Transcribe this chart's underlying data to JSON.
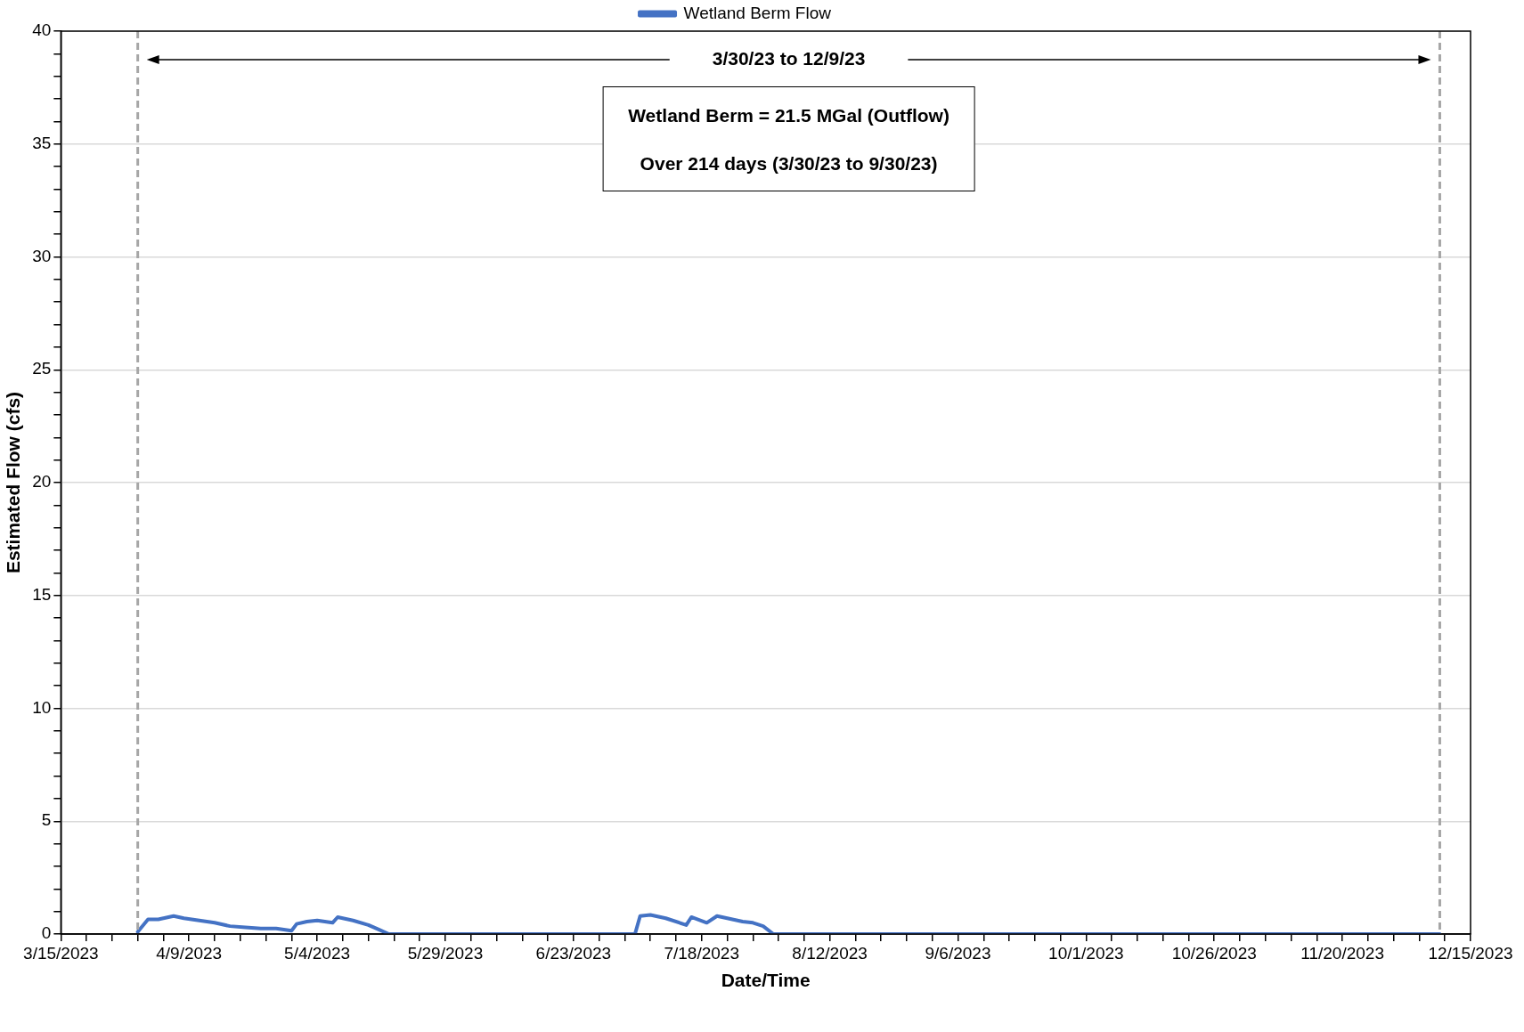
{
  "chart_data": {
    "type": "line",
    "xlabel": "Date/Time",
    "ylabel": "Estimated Flow (cfs)",
    "x": [
      "2023-03-30",
      "2023-04-01",
      "2023-04-03",
      "2023-04-06",
      "2023-04-08",
      "2023-04-11",
      "2023-04-14",
      "2023-04-17",
      "2023-04-20",
      "2023-04-23",
      "2023-04-26",
      "2023-04-29",
      "2023-04-30",
      "2023-05-02",
      "2023-05-04",
      "2023-05-07",
      "2023-05-08",
      "2023-05-11",
      "2023-05-14",
      "2023-05-16",
      "2023-05-18",
      "2023-07-05",
      "2023-07-06",
      "2023-07-08",
      "2023-07-11",
      "2023-07-15",
      "2023-07-16",
      "2023-07-19",
      "2023-07-21",
      "2023-07-26",
      "2023-07-28",
      "2023-07-30",
      "2023-08-01",
      "2023-12-09"
    ],
    "series": [
      {
        "name": "Wetland Berm Flow",
        "color": "#4472c4",
        "values": [
          0.1,
          0.65,
          0.65,
          0.8,
          0.7,
          0.6,
          0.5,
          0.35,
          0.3,
          0.25,
          0.25,
          0.15,
          0.45,
          0.55,
          0.6,
          0.5,
          0.75,
          0.6,
          0.4,
          0.2,
          0,
          0,
          0.8,
          0.85,
          0.7,
          0.4,
          0.75,
          0.5,
          0.8,
          0.55,
          0.5,
          0.35,
          0,
          0
        ]
      }
    ],
    "xlim": [
      "2023-03-15",
      "2023-12-15"
    ],
    "xticks": [
      {
        "value": "2023-03-15",
        "label": "3/15/2023"
      },
      {
        "value": "2023-03-20",
        "label": null
      },
      {
        "value": "2023-03-25",
        "label": null
      },
      {
        "value": "2023-03-30",
        "label": null
      },
      {
        "value": "2023-04-04",
        "label": null
      },
      {
        "value": "2023-04-09",
        "label": "4/9/2023"
      },
      {
        "value": "2023-04-14",
        "label": null
      },
      {
        "value": "2023-04-19",
        "label": null
      },
      {
        "value": "2023-04-24",
        "label": null
      },
      {
        "value": "2023-04-29",
        "label": null
      },
      {
        "value": "2023-05-04",
        "label": "5/4/2023"
      },
      {
        "value": "2023-05-09",
        "label": null
      },
      {
        "value": "2023-05-14",
        "label": null
      },
      {
        "value": "2023-05-19",
        "label": null
      },
      {
        "value": "2023-05-24",
        "label": null
      },
      {
        "value": "2023-05-29",
        "label": "5/29/2023"
      },
      {
        "value": "2023-06-03",
        "label": null
      },
      {
        "value": "2023-06-08",
        "label": null
      },
      {
        "value": "2023-06-13",
        "label": null
      },
      {
        "value": "2023-06-18",
        "label": null
      },
      {
        "value": "2023-06-23",
        "label": "6/23/2023"
      },
      {
        "value": "2023-06-28",
        "label": null
      },
      {
        "value": "2023-07-03",
        "label": null
      },
      {
        "value": "2023-07-08",
        "label": null
      },
      {
        "value": "2023-07-13",
        "label": null
      },
      {
        "value": "2023-07-18",
        "label": "7/18/2023"
      },
      {
        "value": "2023-07-23",
        "label": null
      },
      {
        "value": "2023-07-28",
        "label": null
      },
      {
        "value": "2023-08-02",
        "label": null
      },
      {
        "value": "2023-08-07",
        "label": null
      },
      {
        "value": "2023-08-12",
        "label": "8/12/2023"
      },
      {
        "value": "2023-08-17",
        "label": null
      },
      {
        "value": "2023-08-22",
        "label": null
      },
      {
        "value": "2023-08-27",
        "label": null
      },
      {
        "value": "2023-09-01",
        "label": null
      },
      {
        "value": "2023-09-06",
        "label": "9/6/2023"
      },
      {
        "value": "2023-09-11",
        "label": null
      },
      {
        "value": "2023-09-16",
        "label": null
      },
      {
        "value": "2023-09-21",
        "label": null
      },
      {
        "value": "2023-09-26",
        "label": null
      },
      {
        "value": "2023-10-01",
        "label": "10/1/2023"
      },
      {
        "value": "2023-10-06",
        "label": null
      },
      {
        "value": "2023-10-11",
        "label": null
      },
      {
        "value": "2023-10-16",
        "label": null
      },
      {
        "value": "2023-10-21",
        "label": null
      },
      {
        "value": "2023-10-26",
        "label": "10/26/2023"
      },
      {
        "value": "2023-10-31",
        "label": null
      },
      {
        "value": "2023-11-05",
        "label": null
      },
      {
        "value": "2023-11-10",
        "label": null
      },
      {
        "value": "2023-11-15",
        "label": null
      },
      {
        "value": "2023-11-20",
        "label": "11/20/2023"
      },
      {
        "value": "2023-11-25",
        "label": null
      },
      {
        "value": "2023-11-30",
        "label": null
      },
      {
        "value": "2023-12-05",
        "label": null
      },
      {
        "value": "2023-12-10",
        "label": null
      },
      {
        "value": "2023-12-15",
        "label": "12/15/2023"
      }
    ],
    "ylim": [
      0,
      40
    ],
    "yticks": [
      0,
      {
        "value": 1,
        "label": null
      },
      {
        "value": 2,
        "label": null
      },
      {
        "value": 3,
        "label": null
      },
      {
        "value": 4,
        "label": null
      },
      5,
      {
        "value": 6,
        "label": null
      },
      {
        "value": 7,
        "label": null
      },
      {
        "value": 8,
        "label": null
      },
      {
        "value": 9,
        "label": null
      },
      10,
      {
        "value": 11,
        "label": null
      },
      {
        "value": 12,
        "label": null
      },
      {
        "value": 13,
        "label": null
      },
      {
        "value": 14,
        "label": null
      },
      15,
      {
        "value": 16,
        "label": null
      },
      {
        "value": 17,
        "label": null
      },
      {
        "value": 18,
        "label": null
      },
      {
        "value": 19,
        "label": null
      },
      20,
      {
        "value": 21,
        "label": null
      },
      {
        "value": 22,
        "label": null
      },
      {
        "value": 23,
        "label": null
      },
      {
        "value": 24,
        "label": null
      },
      25,
      {
        "value": 26,
        "label": null
      },
      {
        "value": 27,
        "label": null
      },
      {
        "value": 28,
        "label": null
      },
      {
        "value": 29,
        "label": null
      },
      30,
      {
        "value": 31,
        "label": null
      },
      {
        "value": 32,
        "label": null
      },
      {
        "value": 33,
        "label": null
      },
      {
        "value": 34,
        "label": null
      },
      35,
      {
        "value": 36,
        "label": null
      },
      {
        "value": 37,
        "label": null
      },
      {
        "value": 38,
        "label": null
      },
      {
        "value": 39,
        "label": null
      },
      40
    ],
    "ref_lines": [
      {
        "axis": "x",
        "value": "2023-03-30",
        "color": "#a6a6a6",
        "line_style": "dashed"
      },
      {
        "axis": "x",
        "value": "2023-12-09",
        "color": "#a6a6a6",
        "line_style": "dashed"
      }
    ],
    "annotations": [
      "3/30/23 to 12/9/23",
      "Wetland Berm = 21.5 MGal (Outflow)",
      "Over 214 days (3/30/23 to 9/30/23)"
    ],
    "grid": "y",
    "legend": "top",
    "marker": "none",
    "line_style": "solid"
  }
}
